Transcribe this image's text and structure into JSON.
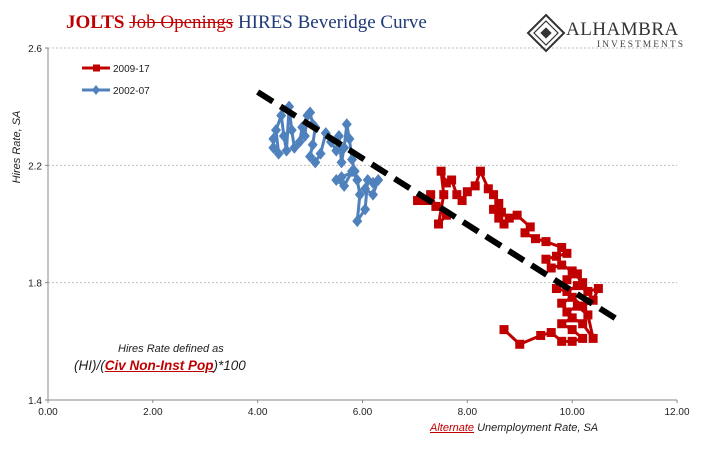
{
  "title": {
    "part1": "JOLTS",
    "part2": "Job Openings",
    "part3": "HIRES Beveridge Curve"
  },
  "logo": {
    "name": "ALHAMBRA",
    "sub": "INVESTMENTS"
  },
  "annotation": {
    "line1": "Hires Rate defined as",
    "line2_pre": "(HI)/(",
    "line2_red": "Civ Non-Inst Pop",
    "line2_post": ")*100"
  },
  "colors": {
    "series_2009": "#c00000",
    "series_2002": "#4f81bd",
    "trend": "#000000"
  },
  "chart_data": {
    "type": "scatter",
    "xlabel_prefix": "Alternate",
    "xlabel": "Unemployment Rate, SA",
    "ylabel": "Hires Rate, SA",
    "xlim": [
      0,
      12
    ],
    "ylim": [
      1.4,
      2.6
    ],
    "x_ticks": [
      "0.00",
      "2.00",
      "4.00",
      "6.00",
      "8.00",
      "10.00",
      "12.00"
    ],
    "y_ticks": [
      "1.4",
      "1.8",
      "2.2",
      "2.6"
    ],
    "legend": "top-left",
    "series": [
      {
        "name": "2009-17",
        "marker": "square",
        "points": [
          [
            8.7,
            1.64
          ],
          [
            9.0,
            1.59
          ],
          [
            9.4,
            1.62
          ],
          [
            9.6,
            1.63
          ],
          [
            9.8,
            1.6
          ],
          [
            10.0,
            1.6
          ],
          [
            10.2,
            1.61
          ],
          [
            10.0,
            1.64
          ],
          [
            9.8,
            1.66
          ],
          [
            10.0,
            1.68
          ],
          [
            10.2,
            1.66
          ],
          [
            10.4,
            1.61
          ],
          [
            10.3,
            1.69
          ],
          [
            10.1,
            1.72
          ],
          [
            9.9,
            1.7
          ],
          [
            9.8,
            1.73
          ],
          [
            10.0,
            1.75
          ],
          [
            10.2,
            1.72
          ],
          [
            10.4,
            1.74
          ],
          [
            10.5,
            1.78
          ],
          [
            10.3,
            1.77
          ],
          [
            10.1,
            1.79
          ],
          [
            9.9,
            1.77
          ],
          [
            9.7,
            1.78
          ],
          [
            9.9,
            1.81
          ],
          [
            10.1,
            1.83
          ],
          [
            10.2,
            1.8
          ],
          [
            10.0,
            1.84
          ],
          [
            9.8,
            1.86
          ],
          [
            9.6,
            1.85
          ],
          [
            9.5,
            1.88
          ],
          [
            9.7,
            1.89
          ],
          [
            9.9,
            1.9
          ],
          [
            9.8,
            1.92
          ],
          [
            9.5,
            1.94
          ],
          [
            9.3,
            1.95
          ],
          [
            9.1,
            1.97
          ],
          [
            9.2,
            1.99
          ],
          [
            8.95,
            2.03
          ],
          [
            8.8,
            2.02
          ],
          [
            8.65,
            2.04
          ],
          [
            8.6,
            2.02
          ],
          [
            8.7,
            2.0
          ],
          [
            8.5,
            2.05
          ],
          [
            8.6,
            2.07
          ],
          [
            8.5,
            2.1
          ],
          [
            8.4,
            2.12
          ],
          [
            8.25,
            2.18
          ],
          [
            8.15,
            2.13
          ],
          [
            8.0,
            2.11
          ],
          [
            7.9,
            2.08
          ],
          [
            7.8,
            2.1
          ],
          [
            7.7,
            2.15
          ],
          [
            7.6,
            2.14
          ],
          [
            7.5,
            2.18
          ],
          [
            7.55,
            2.1
          ],
          [
            7.45,
            2.0
          ],
          [
            7.6,
            2.03
          ],
          [
            7.4,
            2.06
          ],
          [
            7.3,
            2.1
          ],
          [
            7.2,
            2.08
          ],
          [
            7.05,
            2.08
          ]
        ]
      },
      {
        "name": "2002-07",
        "marker": "diamond",
        "points": [
          [
            4.3,
            2.29
          ],
          [
            4.3,
            2.26
          ],
          [
            4.4,
            2.24
          ],
          [
            4.35,
            2.32
          ],
          [
            4.45,
            2.37
          ],
          [
            4.5,
            2.3
          ],
          [
            4.55,
            2.25
          ],
          [
            4.6,
            2.4
          ],
          [
            4.65,
            2.32
          ],
          [
            4.7,
            2.26
          ],
          [
            4.8,
            2.28
          ],
          [
            4.85,
            2.33
          ],
          [
            4.9,
            2.3
          ],
          [
            4.95,
            2.37
          ],
          [
            5.0,
            2.38
          ],
          [
            5.05,
            2.34
          ],
          [
            5.1,
            2.33
          ],
          [
            5.05,
            2.27
          ],
          [
            5.0,
            2.23
          ],
          [
            5.1,
            2.21
          ],
          [
            5.2,
            2.24
          ],
          [
            5.3,
            2.31
          ],
          [
            5.4,
            2.28
          ],
          [
            5.5,
            2.25
          ],
          [
            5.55,
            2.3
          ],
          [
            5.6,
            2.21
          ],
          [
            5.65,
            2.26
          ],
          [
            5.7,
            2.34
          ],
          [
            5.75,
            2.29
          ],
          [
            5.8,
            2.22
          ],
          [
            5.85,
            2.18
          ],
          [
            5.6,
            2.16
          ],
          [
            5.5,
            2.15
          ],
          [
            5.65,
            2.13
          ],
          [
            5.8,
            2.18
          ],
          [
            5.9,
            2.15
          ],
          [
            5.95,
            2.1
          ],
          [
            5.9,
            2.01
          ],
          [
            6.05,
            2.05
          ],
          [
            6.1,
            2.15
          ],
          [
            6.2,
            2.14
          ],
          [
            6.3,
            2.15
          ],
          [
            6.2,
            2.1
          ],
          [
            6.05,
            2.12
          ]
        ]
      }
    ],
    "trendline": {
      "name": "trend",
      "style": "dashed",
      "points": [
        [
          4.0,
          2.45
        ],
        [
          10.9,
          1.67
        ]
      ]
    }
  }
}
